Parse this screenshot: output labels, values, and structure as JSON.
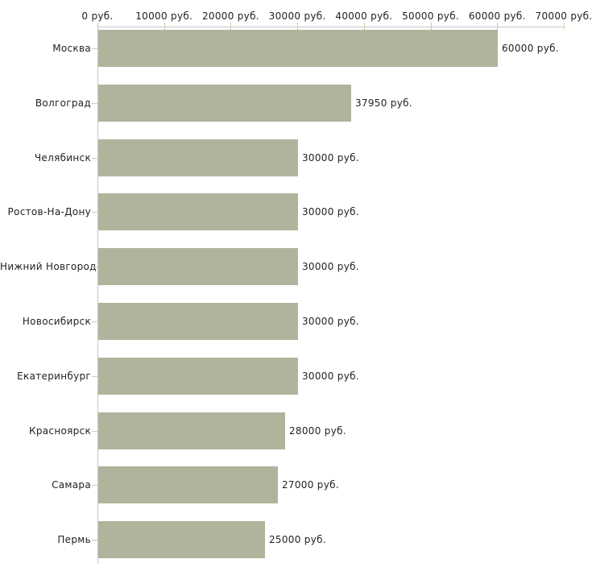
{
  "chart_data": {
    "type": "bar",
    "orientation": "horizontal",
    "title": "",
    "xlabel": "",
    "ylabel": "",
    "unit_suffix": " руб.",
    "categories": [
      "Москва",
      "Волгоград",
      "Челябинск",
      "Ростов-На-Дону",
      "Нижний Новгород",
      "Новосибирск",
      "Екатеринбург",
      "Красноярск",
      "Самара",
      "Пермь"
    ],
    "values": [
      60000,
      37950,
      30000,
      30000,
      30000,
      30000,
      30000,
      28000,
      27000,
      25000
    ],
    "value_labels": [
      "60000 руб.",
      "37950 руб.",
      "30000 руб.",
      "30000 руб.",
      "30000 руб.",
      "30000 руб.",
      "30000 руб.",
      "28000 руб.",
      "27000 руб.",
      "25000 руб."
    ],
    "xlim": [
      0,
      70000
    ],
    "x_ticks": [
      0,
      10000,
      20000,
      30000,
      40000,
      50000,
      60000,
      70000
    ],
    "x_tick_labels": [
      "0 руб.",
      "10000 руб.",
      "20000 руб.",
      "30000 руб.",
      "40000 руб.",
      "50000 руб.",
      "60000 руб.",
      "70000 руб."
    ],
    "grid": false,
    "legend": "none",
    "tick_label_position": "top",
    "colors": {
      "bar": "#afb59c",
      "axis_line": "#c8c8c8",
      "tick": "#cfcba4",
      "text": "#222222",
      "background": "#ffffff"
    }
  }
}
